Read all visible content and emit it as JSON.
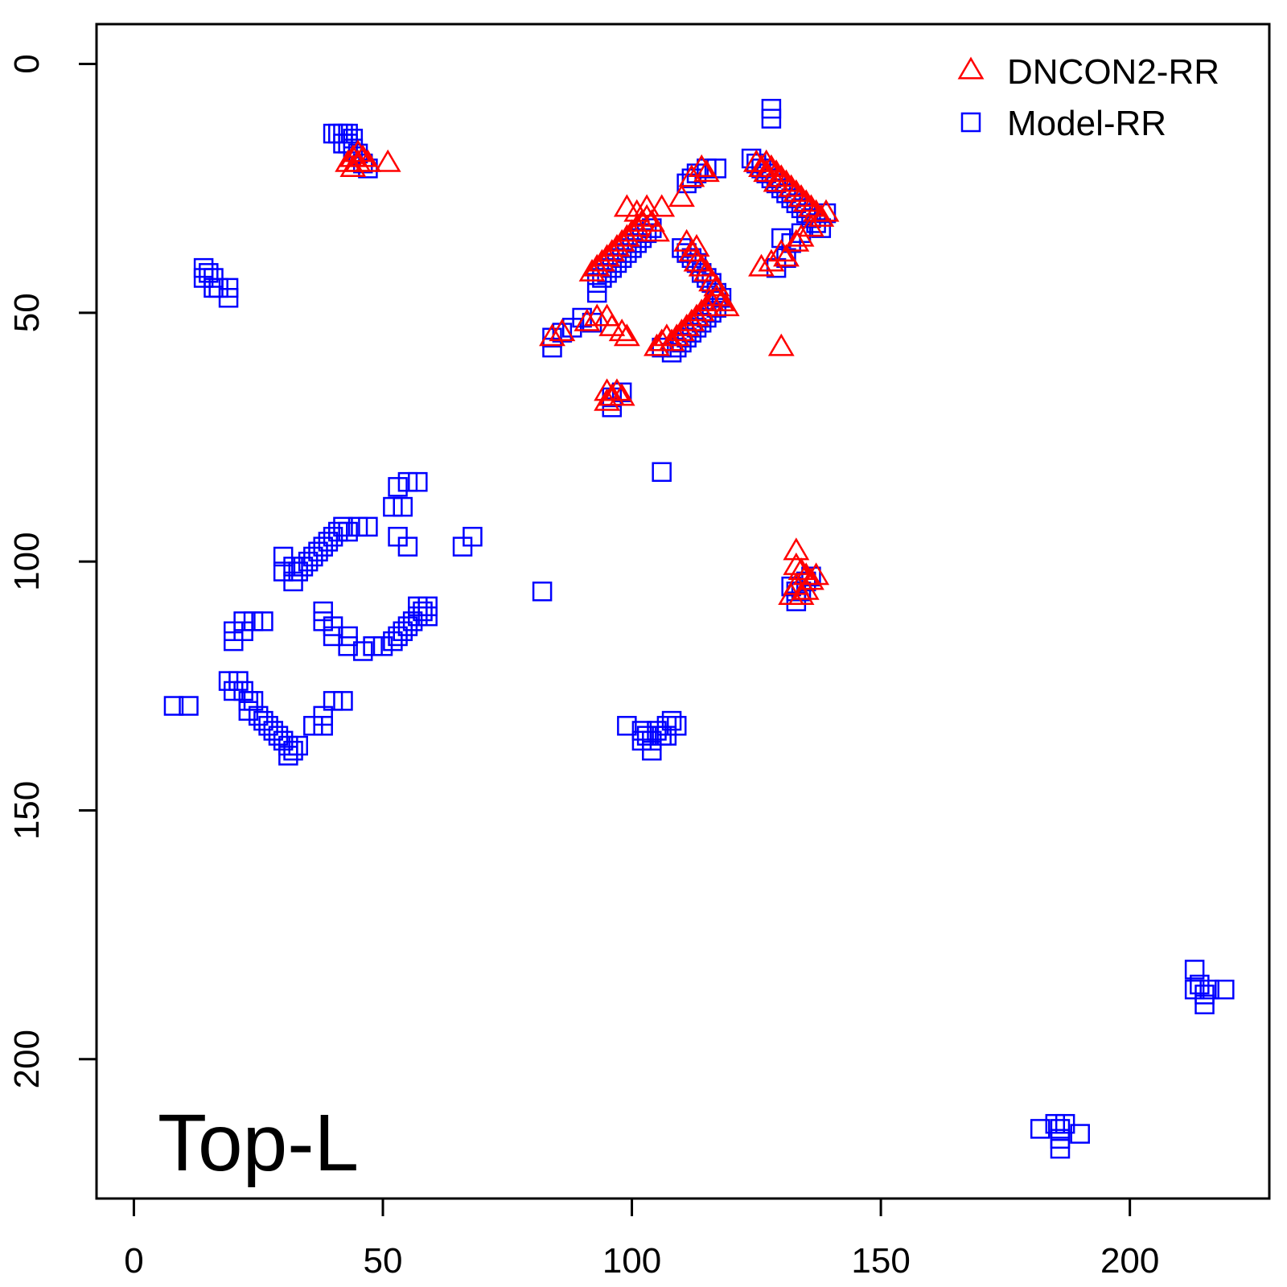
{
  "chart_data": {
    "type": "scatter",
    "title": "",
    "xlabel": "",
    "ylabel": "",
    "xlim": [
      -7.5,
      228
    ],
    "ylim": [
      228,
      -8
    ],
    "y_reversed": true,
    "x_ticks": [
      0,
      50,
      100,
      150,
      200
    ],
    "y_ticks": [
      0,
      50,
      100,
      150,
      200
    ],
    "grid": false,
    "legend_position": "top-right",
    "annotation": "Top-L",
    "colors": {
      "DNCON2-RR": "#ff0000",
      "Model-RR": "#0000ff"
    },
    "series": [
      {
        "name": "Model-RR",
        "marker": "square",
        "color": "#0000ff",
        "points": [
          [
            40,
            14
          ],
          [
            41,
            14
          ],
          [
            42,
            14
          ],
          [
            43,
            14
          ],
          [
            44,
            15
          ],
          [
            42,
            16
          ],
          [
            43,
            16
          ],
          [
            44,
            17
          ],
          [
            45,
            18
          ],
          [
            46,
            20
          ],
          [
            47,
            21
          ],
          [
            14,
            41
          ],
          [
            15,
            42
          ],
          [
            14,
            43
          ],
          [
            16,
            43
          ],
          [
            16,
            45
          ],
          [
            17,
            45
          ],
          [
            19,
            45
          ],
          [
            19,
            47
          ],
          [
            128,
            9
          ],
          [
            128,
            11
          ],
          [
            124,
            19
          ],
          [
            125,
            20
          ],
          [
            126,
            21
          ],
          [
            127,
            22
          ],
          [
            128,
            23
          ],
          [
            129,
            24
          ],
          [
            130,
            25
          ],
          [
            131,
            26
          ],
          [
            132,
            27
          ],
          [
            133,
            28
          ],
          [
            134,
            29
          ],
          [
            135,
            30
          ],
          [
            136,
            31
          ],
          [
            137,
            32
          ],
          [
            138,
            33
          ],
          [
            139,
            30
          ],
          [
            111,
            24
          ],
          [
            112,
            23
          ],
          [
            113,
            22
          ],
          [
            115,
            21
          ],
          [
            117,
            21
          ],
          [
            93,
            44
          ],
          [
            94,
            43
          ],
          [
            95,
            42
          ],
          [
            96,
            41
          ],
          [
            97,
            40
          ],
          [
            98,
            39
          ],
          [
            99,
            38
          ],
          [
            100,
            37
          ],
          [
            101,
            36
          ],
          [
            102,
            35
          ],
          [
            103,
            34
          ],
          [
            104,
            33
          ],
          [
            93,
            46
          ],
          [
            110,
            37
          ],
          [
            111,
            38
          ],
          [
            112,
            39
          ],
          [
            113,
            40
          ],
          [
            114,
            42
          ],
          [
            115,
            43
          ],
          [
            116,
            44
          ],
          [
            117,
            46
          ],
          [
            118,
            47
          ],
          [
            108,
            58
          ],
          [
            109,
            57
          ],
          [
            110,
            56
          ],
          [
            111,
            55
          ],
          [
            112,
            54
          ],
          [
            113,
            53
          ],
          [
            114,
            52
          ],
          [
            115,
            51
          ],
          [
            116,
            50
          ],
          [
            117,
            49
          ],
          [
            106,
            57
          ],
          [
            84,
            55
          ],
          [
            84,
            57
          ],
          [
            86,
            54
          ],
          [
            88,
            53
          ],
          [
            90,
            51
          ],
          [
            92,
            52
          ],
          [
            96,
            67
          ],
          [
            96,
            69
          ],
          [
            98,
            66
          ],
          [
            130,
            35
          ],
          [
            132,
            36
          ],
          [
            134,
            34
          ],
          [
            129,
            41
          ],
          [
            131,
            39
          ],
          [
            106,
            82
          ],
          [
            53,
            85
          ],
          [
            55,
            84
          ],
          [
            57,
            84
          ],
          [
            52,
            89
          ],
          [
            54,
            89
          ],
          [
            53,
            95
          ],
          [
            55,
            97
          ],
          [
            66,
            97
          ],
          [
            68,
            95
          ],
          [
            30,
            99
          ],
          [
            30,
            102
          ],
          [
            32,
            101
          ],
          [
            32,
            104
          ],
          [
            33,
            102
          ],
          [
            34,
            101
          ],
          [
            35,
            100
          ],
          [
            36,
            99
          ],
          [
            37,
            98
          ],
          [
            38,
            97
          ],
          [
            39,
            96
          ],
          [
            40,
            95
          ],
          [
            41,
            94
          ],
          [
            42,
            93
          ],
          [
            43,
            94
          ],
          [
            45,
            93
          ],
          [
            47,
            93
          ],
          [
            82,
            106
          ],
          [
            20,
            114
          ],
          [
            20,
            116
          ],
          [
            22,
            112
          ],
          [
            22,
            114
          ],
          [
            24,
            112
          ],
          [
            26,
            112
          ],
          [
            38,
            110
          ],
          [
            38,
            112
          ],
          [
            40,
            113
          ],
          [
            40,
            115
          ],
          [
            43,
            115
          ],
          [
            43,
            117
          ],
          [
            46,
            118
          ],
          [
            48,
            117
          ],
          [
            50,
            117
          ],
          [
            52,
            116
          ],
          [
            53,
            115
          ],
          [
            54,
            114
          ],
          [
            55,
            113
          ],
          [
            56,
            112
          ],
          [
            57,
            111
          ],
          [
            57,
            109
          ],
          [
            58,
            110
          ],
          [
            59,
            109
          ],
          [
            59,
            111
          ],
          [
            132,
            105
          ],
          [
            133,
            106
          ],
          [
            134,
            106
          ],
          [
            135,
            104
          ],
          [
            136,
            103
          ],
          [
            133,
            108
          ],
          [
            8,
            129
          ],
          [
            11,
            129
          ],
          [
            19,
            124
          ],
          [
            21,
            124
          ],
          [
            20,
            126
          ],
          [
            22,
            126
          ],
          [
            23,
            128
          ],
          [
            23,
            130
          ],
          [
            24,
            128
          ],
          [
            25,
            131
          ],
          [
            26,
            132
          ],
          [
            27,
            133
          ],
          [
            28,
            134
          ],
          [
            29,
            135
          ],
          [
            30,
            136
          ],
          [
            31,
            137
          ],
          [
            31,
            139
          ],
          [
            32,
            138
          ],
          [
            33,
            137
          ],
          [
            36,
            133
          ],
          [
            38,
            131
          ],
          [
            38,
            133
          ],
          [
            40,
            128
          ],
          [
            42,
            128
          ],
          [
            99,
            133
          ],
          [
            102,
            134
          ],
          [
            102,
            136
          ],
          [
            103,
            135
          ],
          [
            104,
            136
          ],
          [
            104,
            138
          ],
          [
            105,
            134
          ],
          [
            106,
            135
          ],
          [
            107,
            135
          ],
          [
            107,
            133
          ],
          [
            108,
            132
          ],
          [
            109,
            133
          ],
          [
            213,
            182
          ],
          [
            213,
            186
          ],
          [
            214,
            185
          ],
          [
            215,
            187
          ],
          [
            215,
            189
          ],
          [
            216,
            186
          ],
          [
            219,
            186
          ],
          [
            182,
            214
          ],
          [
            185,
            213
          ],
          [
            186,
            214
          ],
          [
            187,
            213
          ],
          [
            186,
            216
          ],
          [
            186,
            218
          ],
          [
            190,
            215
          ]
        ]
      },
      {
        "name": "DNCON2-RR",
        "marker": "triangle",
        "color": "#ff0000",
        "points": [
          [
            43,
            20
          ],
          [
            44,
            19
          ],
          [
            45,
            18
          ],
          [
            46,
            19
          ],
          [
            47,
            20
          ],
          [
            45,
            20
          ],
          [
            44,
            21
          ],
          [
            51,
            20
          ],
          [
            125,
            20
          ],
          [
            126,
            21
          ],
          [
            127,
            20
          ],
          [
            128,
            21
          ],
          [
            129,
            22
          ],
          [
            130,
            23
          ],
          [
            131,
            24
          ],
          [
            132,
            25
          ],
          [
            133,
            26
          ],
          [
            134,
            27
          ],
          [
            135,
            28
          ],
          [
            136,
            29
          ],
          [
            137,
            30
          ],
          [
            138,
            31
          ],
          [
            139,
            30
          ],
          [
            127,
            22
          ],
          [
            129,
            24
          ],
          [
            112,
            23
          ],
          [
            114,
            21
          ],
          [
            115,
            22
          ],
          [
            110,
            27
          ],
          [
            92,
            42
          ],
          [
            93,
            41
          ],
          [
            94,
            40
          ],
          [
            95,
            39
          ],
          [
            96,
            38
          ],
          [
            97,
            37
          ],
          [
            98,
            36
          ],
          [
            99,
            35
          ],
          [
            100,
            34
          ],
          [
            101,
            33
          ],
          [
            102,
            32
          ],
          [
            103,
            31
          ],
          [
            104,
            32
          ],
          [
            106,
            29
          ],
          [
            99,
            29
          ],
          [
            101,
            30
          ],
          [
            103,
            29
          ],
          [
            105,
            34
          ],
          [
            111,
            36
          ],
          [
            113,
            37
          ],
          [
            112,
            38
          ],
          [
            113,
            40
          ],
          [
            114,
            41
          ],
          [
            115,
            42
          ],
          [
            116,
            44
          ],
          [
            117,
            45
          ],
          [
            105,
            57
          ],
          [
            106,
            56
          ],
          [
            107,
            55
          ],
          [
            108,
            56
          ],
          [
            109,
            55
          ],
          [
            110,
            54
          ],
          [
            111,
            53
          ],
          [
            112,
            52
          ],
          [
            113,
            51
          ],
          [
            114,
            50
          ],
          [
            115,
            49
          ],
          [
            116,
            48
          ],
          [
            117,
            47
          ],
          [
            118,
            48
          ],
          [
            119,
            49
          ],
          [
            84,
            55
          ],
          [
            86,
            54
          ],
          [
            91,
            52
          ],
          [
            93,
            51
          ],
          [
            95,
            51
          ],
          [
            96,
            53
          ],
          [
            98,
            54
          ],
          [
            99,
            55
          ],
          [
            95,
            66
          ],
          [
            96,
            67
          ],
          [
            97,
            66
          ],
          [
            98,
            67
          ],
          [
            95,
            68
          ],
          [
            130,
            57
          ],
          [
            126,
            41
          ],
          [
            128,
            40
          ],
          [
            130,
            38
          ],
          [
            131,
            39
          ],
          [
            133,
            36
          ],
          [
            134,
            35
          ],
          [
            136,
            33
          ],
          [
            133,
            98
          ],
          [
            133,
            101
          ],
          [
            134,
            102
          ],
          [
            135,
            103
          ],
          [
            136,
            104
          ],
          [
            137,
            103
          ],
          [
            133,
            105
          ],
          [
            132,
            107
          ],
          [
            134,
            107
          ],
          [
            135,
            106
          ]
        ]
      }
    ]
  }
}
